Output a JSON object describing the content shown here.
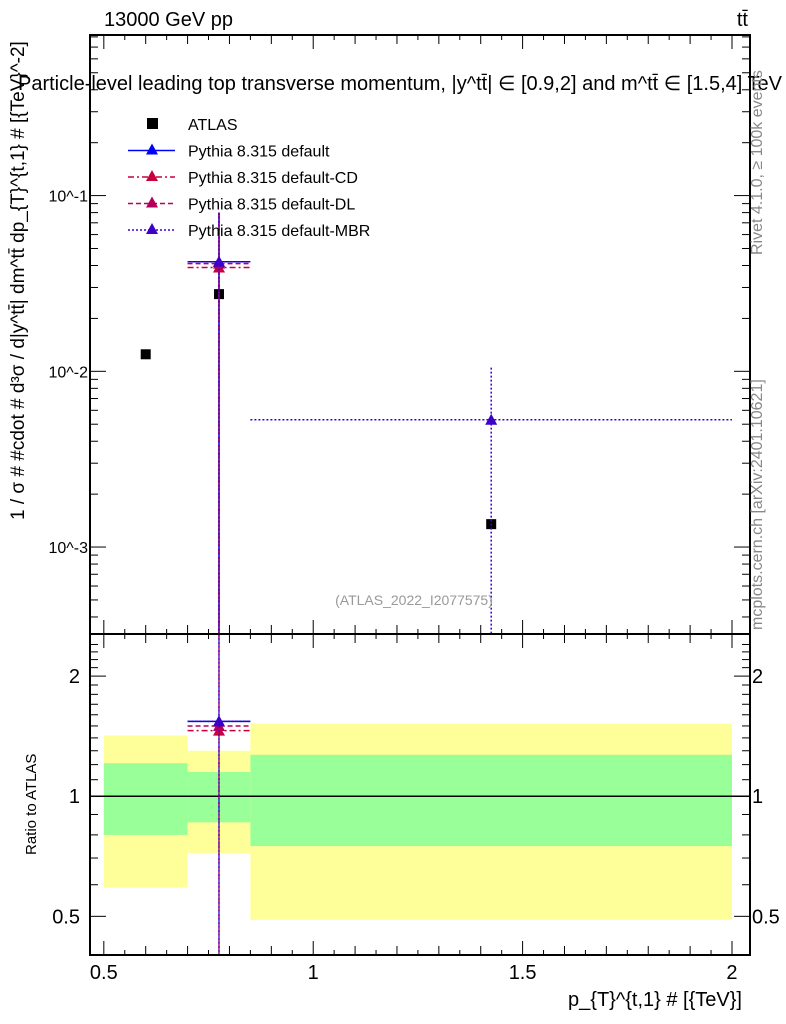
{
  "header": {
    "energy_label": "13000 GeV pp",
    "process_label": "tt̄",
    "title": "Particle-level leading top transverse momentum, |y^tt̄| ∈ [0.9,2] and m^tt̄ ∈ [1.5,4] TeV",
    "side_rivet": "Rivet 4.1.0, ≥ 100k events",
    "side_mcplots": "mcplots.cern.ch [arXiv:2401.10621]",
    "analysis_id": "(ATLAS_2022_I2077575)"
  },
  "colors": {
    "data": "#000000",
    "default": "#0000ff",
    "cd": "#c8003c",
    "dl": "#b4005a",
    "mbr": "#3c00c8",
    "band_inner": "#99ff99",
    "band_outer": "#ffff99"
  },
  "chart_data": [
    {
      "type": "scatter",
      "title": "Particle-level leading top transverse momentum, |y^tt̄| ∈ [0.9,2] and m^tt̄ ∈ [1.5,4] TeV",
      "ylabel": "1 / σ # #cdot # d³σ / d|y^tt̄| dm^tt̄ dp_{T}^{t,1} # [{TeV}^-2]",
      "xlabel": "",
      "xlim": [
        0.467,
        2.043
      ],
      "ylim": [
        0.00032,
        0.82
      ],
      "yscale": "log",
      "yticks": [
        {
          "value": 0.1,
          "label": "10^-1"
        },
        {
          "value": 0.01,
          "label": "10^-2"
        },
        {
          "value": 0.001,
          "label": "10^-3"
        }
      ],
      "bins": [
        [
          0.5,
          0.7
        ],
        [
          0.7,
          0.85
        ],
        [
          0.85,
          2.0
        ]
      ],
      "legend": {
        "placement": "top-left",
        "entries": [
          "ATLAS",
          "Pythia 8.315 default",
          "Pythia 8.315 default-CD",
          "Pythia 8.315 default-DL",
          "Pythia 8.315 default-MBR"
        ]
      },
      "series": [
        {
          "name": "ATLAS",
          "key": "data",
          "style": "square",
          "x": [
            0.6,
            0.775,
            1.425
          ],
          "y": [
            0.0125,
            0.0275,
            0.00135
          ]
        },
        {
          "name": "Pythia 8.315 default",
          "key": "default",
          "style": "solid",
          "x": [
            0.775
          ],
          "xerr": [
            [
              0.7,
              0.85
            ]
          ],
          "y": [
            0.042
          ],
          "yerr": [
            [
              0.0003,
              0.08
            ]
          ]
        },
        {
          "name": "Pythia 8.315 default-CD",
          "key": "cd",
          "style": "dashdot",
          "x": [
            0.775
          ],
          "xerr": [
            [
              0.7,
              0.85
            ]
          ],
          "y": [
            0.039
          ],
          "yerr": [
            [
              0.0003,
              0.08
            ]
          ]
        },
        {
          "name": "Pythia 8.315 default-DL",
          "key": "dl",
          "style": "dashed",
          "x": [
            0.775
          ],
          "xerr": [
            [
              0.7,
              0.85
            ]
          ],
          "y": [
            0.041
          ],
          "yerr": [
            [
              0.0003,
              0.08
            ]
          ]
        },
        {
          "name": "Pythia 8.315 default-MBR",
          "key": "mbr",
          "style": "dotted",
          "x": [
            0.775,
            1.425
          ],
          "xerr": [
            [
              0.7,
              0.85
            ],
            [
              0.85,
              2.0
            ]
          ],
          "y": [
            0.042,
            0.0053
          ],
          "yerr": [
            [
              0.0003,
              0.08
            ],
            [
              0.0003,
              0.0105
            ]
          ]
        }
      ]
    },
    {
      "type": "scatter",
      "ylabel": "Ratio to ATLAS",
      "xlabel": "p_{T}^{t,1} # [{TeV}]",
      "xlim": [
        0.467,
        2.043
      ],
      "ylim": [
        0.4,
        2.55
      ],
      "yscale": "log",
      "xticks": [
        {
          "value": 0.5,
          "label": "0.5"
        },
        {
          "value": 1,
          "label": "1"
        },
        {
          "value": 1.5,
          "label": "1.5"
        },
        {
          "value": 2,
          "label": "2"
        }
      ],
      "yticks": [
        {
          "value": 0.5,
          "label": "0.5"
        },
        {
          "value": 1,
          "label": "1"
        },
        {
          "value": 2,
          "label": "2"
        }
      ],
      "bands": [
        {
          "bin": [
            0.5,
            0.7
          ],
          "inner": [
            0.8,
            1.21
          ],
          "outer": [
            0.59,
            1.42
          ]
        },
        {
          "bin": [
            0.7,
            0.85
          ],
          "inner": [
            0.86,
            1.15
          ],
          "outer": [
            0.72,
            1.3
          ]
        },
        {
          "bin": [
            0.85,
            2.0
          ],
          "inner": [
            0.75,
            1.27
          ],
          "outer": [
            0.49,
            1.52
          ]
        }
      ],
      "series": [
        {
          "name": "Pythia 8.315 default",
          "key": "default",
          "style": "solid",
          "x": [
            0.775
          ],
          "xerr": [
            [
              0.7,
              0.85
            ]
          ],
          "y": [
            1.54
          ]
        },
        {
          "name": "Pythia 8.315 default-CD",
          "key": "cd",
          "style": "dashdot",
          "x": [
            0.775
          ],
          "xerr": [
            [
              0.7,
              0.85
            ]
          ],
          "y": [
            1.46
          ]
        },
        {
          "name": "Pythia 8.315 default-DL",
          "key": "dl",
          "style": "dashed",
          "x": [
            0.775
          ],
          "xerr": [
            [
              0.7,
              0.85
            ]
          ],
          "y": [
            1.5
          ]
        },
        {
          "name": "Pythia 8.315 default-MBR",
          "key": "mbr",
          "style": "dotted",
          "x": [
            0.775
          ],
          "xerr": [
            [
              0.7,
              0.85
            ]
          ],
          "y": [
            1.54
          ]
        }
      ]
    }
  ]
}
